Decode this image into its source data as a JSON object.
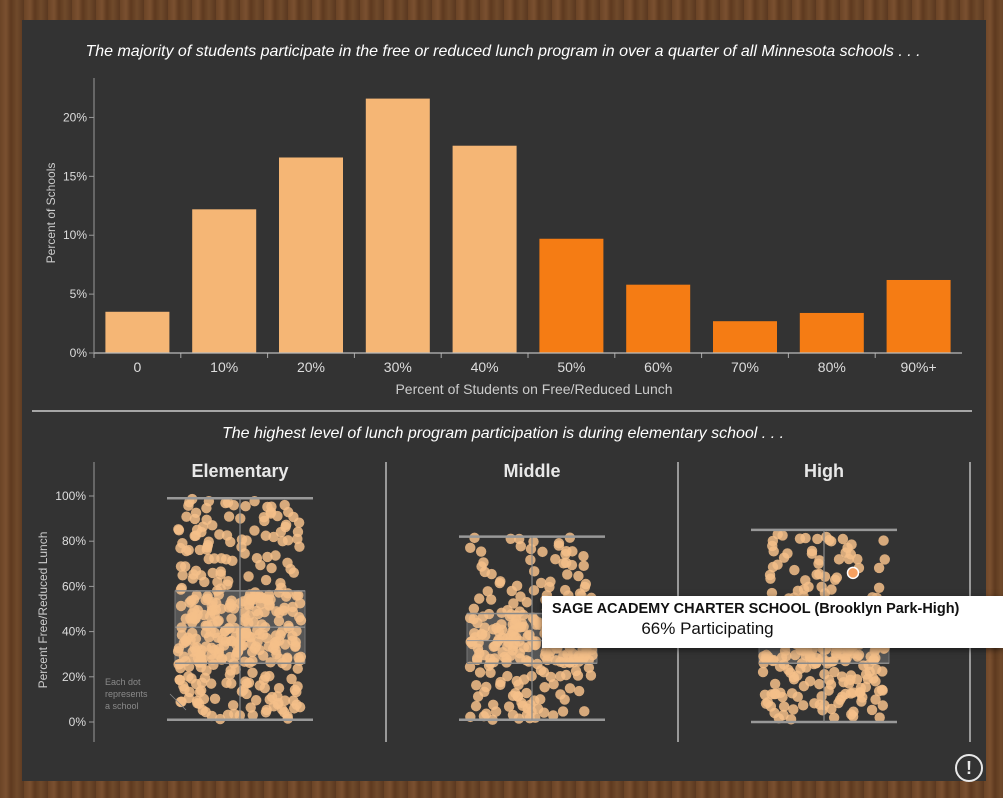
{
  "top_title": "The majority of students participate in the free or reduced lunch program in over a quarter of all Minnesota schools . . .",
  "bottom_title": "The highest level of lunch program participation is during elementary school . . .",
  "dot_note": [
    "Each dot",
    "represents",
    "a school"
  ],
  "tooltip": {
    "school": "SAGE ACADEMY CHARTER SCHOOL (Brooklyn Park-High)",
    "value": "66% Participating"
  },
  "info_icon": "!",
  "colors": {
    "light_bar": "#f5b675",
    "dark_bar": "#f57c14",
    "dot": "#f5c08a",
    "background": "#333333",
    "axis": "#aaaaaa"
  },
  "chart_data": [
    {
      "type": "bar",
      "categories": [
        "0",
        "10%",
        "20%",
        "30%",
        "40%",
        "50%",
        "60%",
        "70%",
        "80%",
        "90%+"
      ],
      "values": [
        3.5,
        12.2,
        16.6,
        21.6,
        17.6,
        9.7,
        5.8,
        2.7,
        3.4,
        6.2
      ],
      "highlight_from_index": 5,
      "xlabel": "Percent of Students on Free/Reduced Lunch",
      "ylabel": "Percent of Schools",
      "yticks": [
        "0%",
        "5%",
        "10%",
        "15%",
        "20%"
      ],
      "ylim": [
        0,
        22.5
      ]
    },
    {
      "type": "scatter",
      "ylabel": "Percent Free/Reduced Lunch",
      "yticks": [
        "0%",
        "20%",
        "40%",
        "60%",
        "80%",
        "100%"
      ],
      "ylim": [
        0,
        100
      ],
      "series": [
        {
          "name": "Elementary",
          "whisker_low": 1,
          "q1": 26,
          "median": 42,
          "q3": 58,
          "whisker_high": 99,
          "n": 380
        },
        {
          "name": "Middle",
          "whisker_low": 1,
          "q1": 26,
          "median": 36,
          "q3": 48,
          "whisker_high": 82,
          "n": 260
        },
        {
          "name": "High",
          "whisker_low": 0,
          "q1": 26,
          "median": 40,
          "q3": 45,
          "whisker_high": 85,
          "n": 300
        }
      ],
      "highlighted_point": {
        "panel": "High",
        "value": 66
      }
    }
  ]
}
